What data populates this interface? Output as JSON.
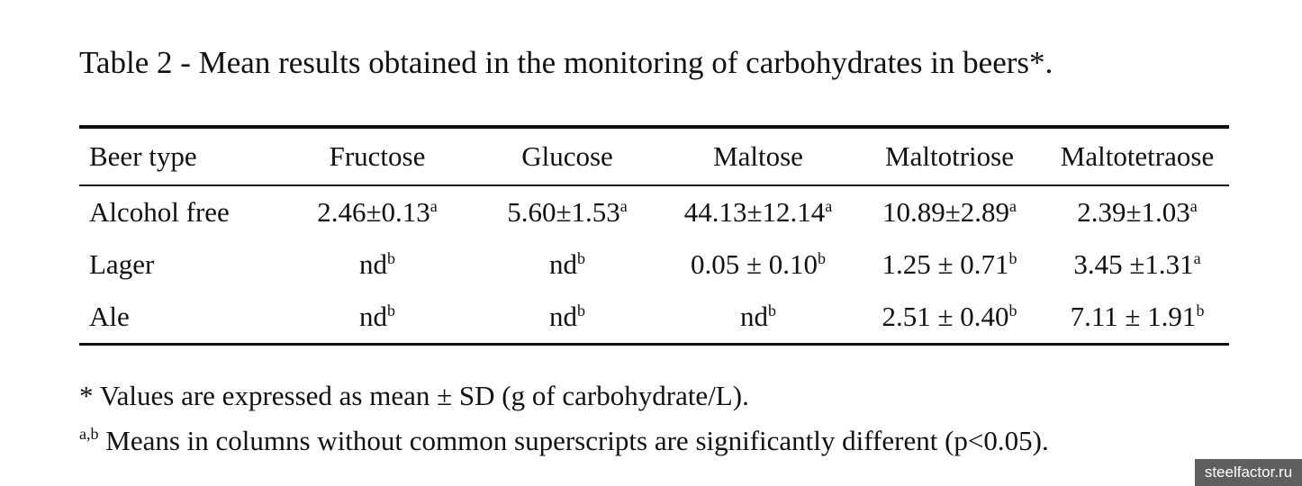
{
  "caption": "Table 2 - Mean results obtained in the monitoring of carbohydrates in beers*.",
  "table": {
    "headers": [
      "Beer type",
      "Fructose",
      "Glucose",
      "Maltose",
      "Maltotriose",
      "Maltotetraose"
    ],
    "rows": [
      [
        {
          "v": "Alcohol free",
          "s": ""
        },
        {
          "v": "2.46±0.13",
          "s": "a"
        },
        {
          "v": "5.60±1.53",
          "s": "a"
        },
        {
          "v": "44.13±12.14",
          "s": "a"
        },
        {
          "v": "10.89±2.89",
          "s": "a"
        },
        {
          "v": "2.39±1.03",
          "s": "a"
        }
      ],
      [
        {
          "v": "Lager",
          "s": ""
        },
        {
          "v": "nd",
          "s": "b"
        },
        {
          "v": "nd",
          "s": "b"
        },
        {
          "v": "0.05 ± 0.10",
          "s": "b"
        },
        {
          "v": "1.25 ± 0.71",
          "s": "b"
        },
        {
          "v": "3.45 ±1.31",
          "s": "a"
        }
      ],
      [
        {
          "v": "Ale",
          "s": ""
        },
        {
          "v": "nd",
          "s": "b"
        },
        {
          "v": "nd",
          "s": "b"
        },
        {
          "v": "nd",
          "s": "b"
        },
        {
          "v": "2.51 ± 0.40",
          "s": "b"
        },
        {
          "v": "7.11 ± 1.91",
          "s": "b"
        }
      ]
    ]
  },
  "notes": {
    "values_note": "* Values are expressed as mean ± SD (g of carbohydrate/L).",
    "sig_sup": "a,b",
    "sig_text": " Means in columns without common superscripts are significantly different (p<0.05)."
  },
  "watermark": "steelfactor.ru"
}
